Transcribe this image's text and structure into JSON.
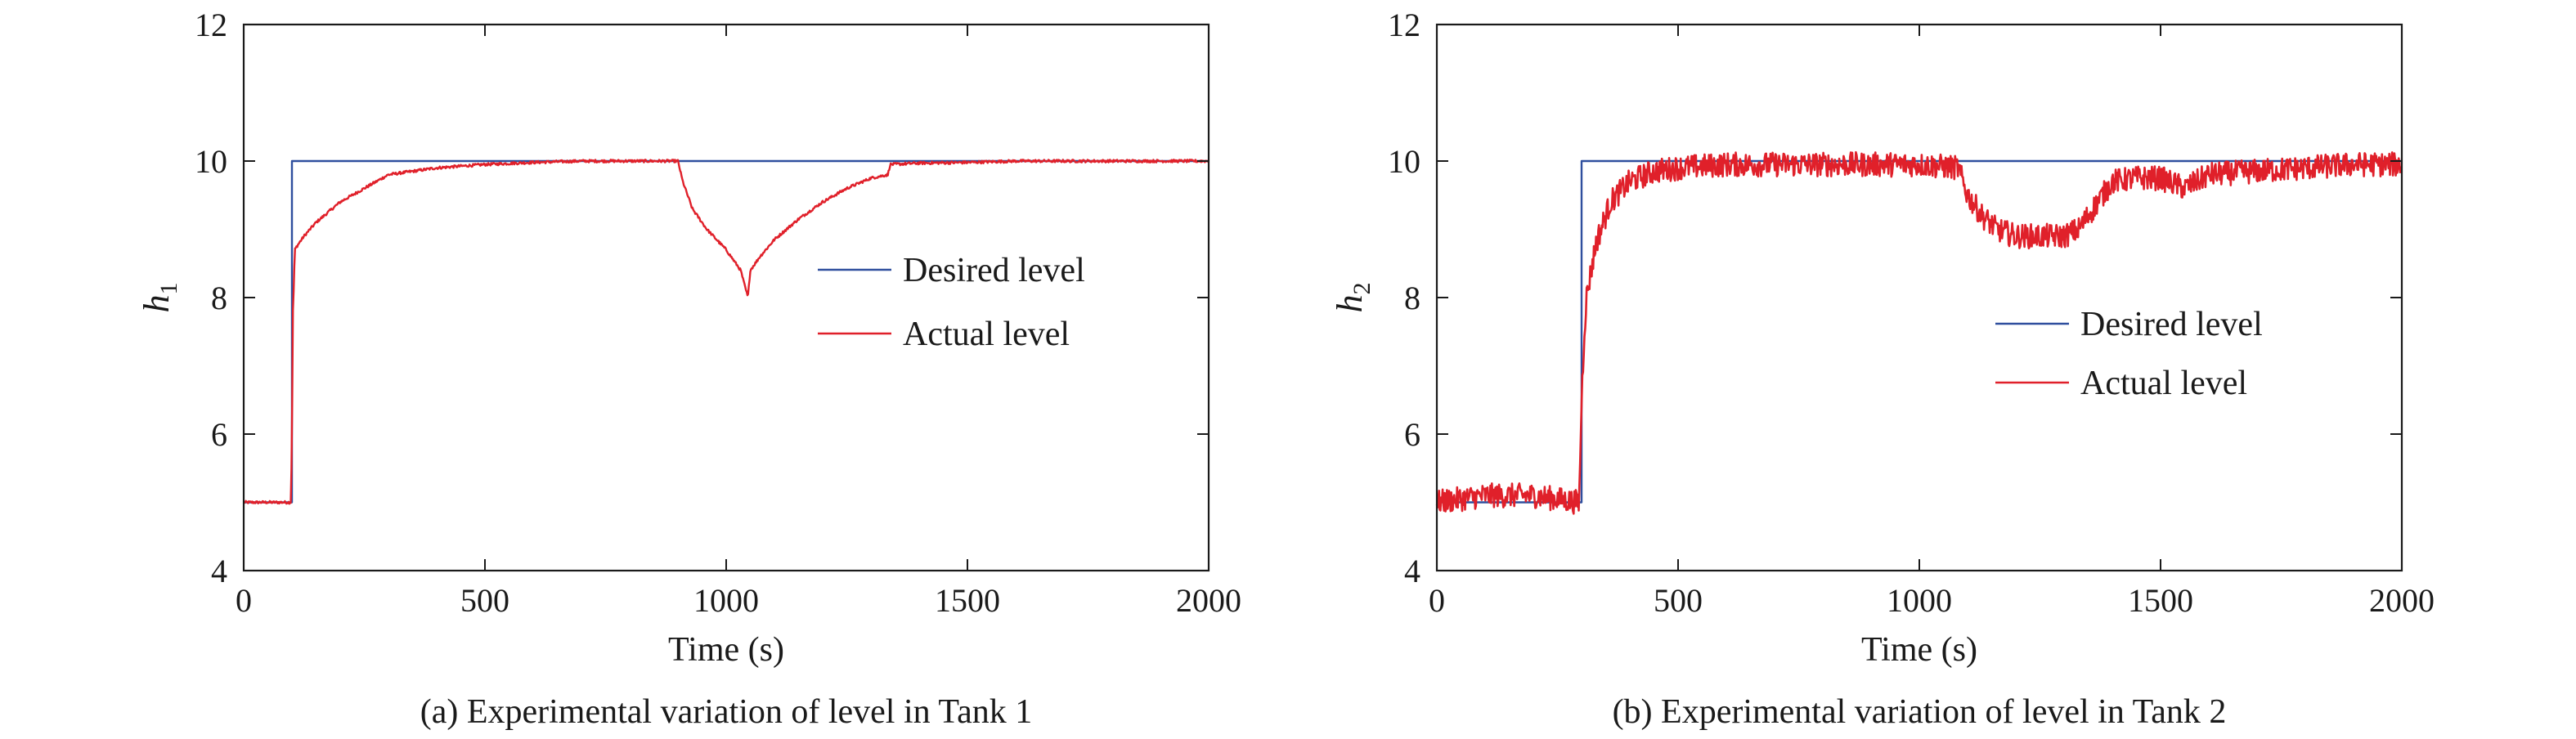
{
  "chart_data": [
    {
      "type": "line",
      "caption": "(a) Experimental variation of level in Tank 1",
      "xlabel": "Time (s)",
      "ylabel": {
        "main": "h",
        "sub": "1"
      },
      "xlim": [
        0,
        2000
      ],
      "ylim": [
        4,
        12
      ],
      "xticks": [
        0,
        500,
        1000,
        1500,
        2000
      ],
      "yticks": [
        4,
        6,
        8,
        10,
        12
      ],
      "grid": false,
      "legend_position": "right-center",
      "series": [
        {
          "name": "Desired level",
          "color": "#2f4f9e",
          "x": [
            0,
            100,
            100,
            2000
          ],
          "y": [
            5,
            5,
            10,
            10
          ]
        },
        {
          "name": "Actual level",
          "color": "#e0202a",
          "noise": 0.02,
          "x": [
            0,
            98,
            100,
            102,
            104,
            106,
            110,
            125,
            150,
            200,
            250,
            300,
            350,
            400,
            500,
            600,
            700,
            800,
            880,
            900,
            910,
            930,
            960,
            1000,
            1030,
            1045,
            1050,
            1070,
            1100,
            1150,
            1200,
            1250,
            1300,
            1335,
            1340,
            1400,
            1500,
            1600,
            1700,
            1800,
            1900,
            2000
          ],
          "y": [
            5.0,
            5.0,
            6.0,
            7.8,
            8.2,
            8.7,
            8.75,
            8.9,
            9.1,
            9.4,
            9.6,
            9.8,
            9.85,
            9.9,
            9.95,
            9.98,
            10.0,
            10.0,
            10.0,
            10.0,
            9.7,
            9.3,
            9.0,
            8.7,
            8.4,
            8.0,
            8.4,
            8.6,
            8.85,
            9.15,
            9.4,
            9.6,
            9.75,
            9.8,
            9.95,
            9.97,
            9.98,
            10.0,
            10.0,
            10.0,
            10.0,
            10.0
          ]
        }
      ]
    },
    {
      "type": "line",
      "caption": "(b) Experimental variation of level in Tank 2",
      "xlabel": "Time (s)",
      "ylabel": {
        "main": "h",
        "sub": "2"
      },
      "xlim": [
        0,
        2000
      ],
      "ylim": [
        4,
        12
      ],
      "xticks": [
        0,
        500,
        1000,
        1500,
        2000
      ],
      "yticks": [
        4,
        6,
        8,
        10,
        12
      ],
      "grid": false,
      "legend_position": "right-center",
      "series": [
        {
          "name": "Desired level",
          "color": "#2f4f9e",
          "x": [
            0,
            300,
            300,
            2000
          ],
          "y": [
            5,
            5,
            10,
            10
          ]
        },
        {
          "name": "Actual level",
          "color": "#e0202a",
          "noise": 0.18,
          "x": [
            0,
            100,
            200,
            295,
            300,
            305,
            310,
            330,
            360,
            400,
            450,
            500,
            600,
            700,
            800,
            900,
            1000,
            1080,
            1100,
            1130,
            1160,
            1200,
            1250,
            1300,
            1330,
            1360,
            1400,
            1450,
            1500,
            1550,
            1600,
            1700,
            1800,
            1900,
            2000
          ],
          "y": [
            5.0,
            5.1,
            5.1,
            5.0,
            6.5,
            7.4,
            8.0,
            8.8,
            9.4,
            9.7,
            9.85,
            9.9,
            9.95,
            9.95,
            9.95,
            9.95,
            9.95,
            9.9,
            9.5,
            9.2,
            9.0,
            8.9,
            8.9,
            8.9,
            9.0,
            9.3,
            9.7,
            9.75,
            9.75,
            9.6,
            9.8,
            9.85,
            9.9,
            9.95,
            9.95
          ]
        }
      ]
    }
  ]
}
